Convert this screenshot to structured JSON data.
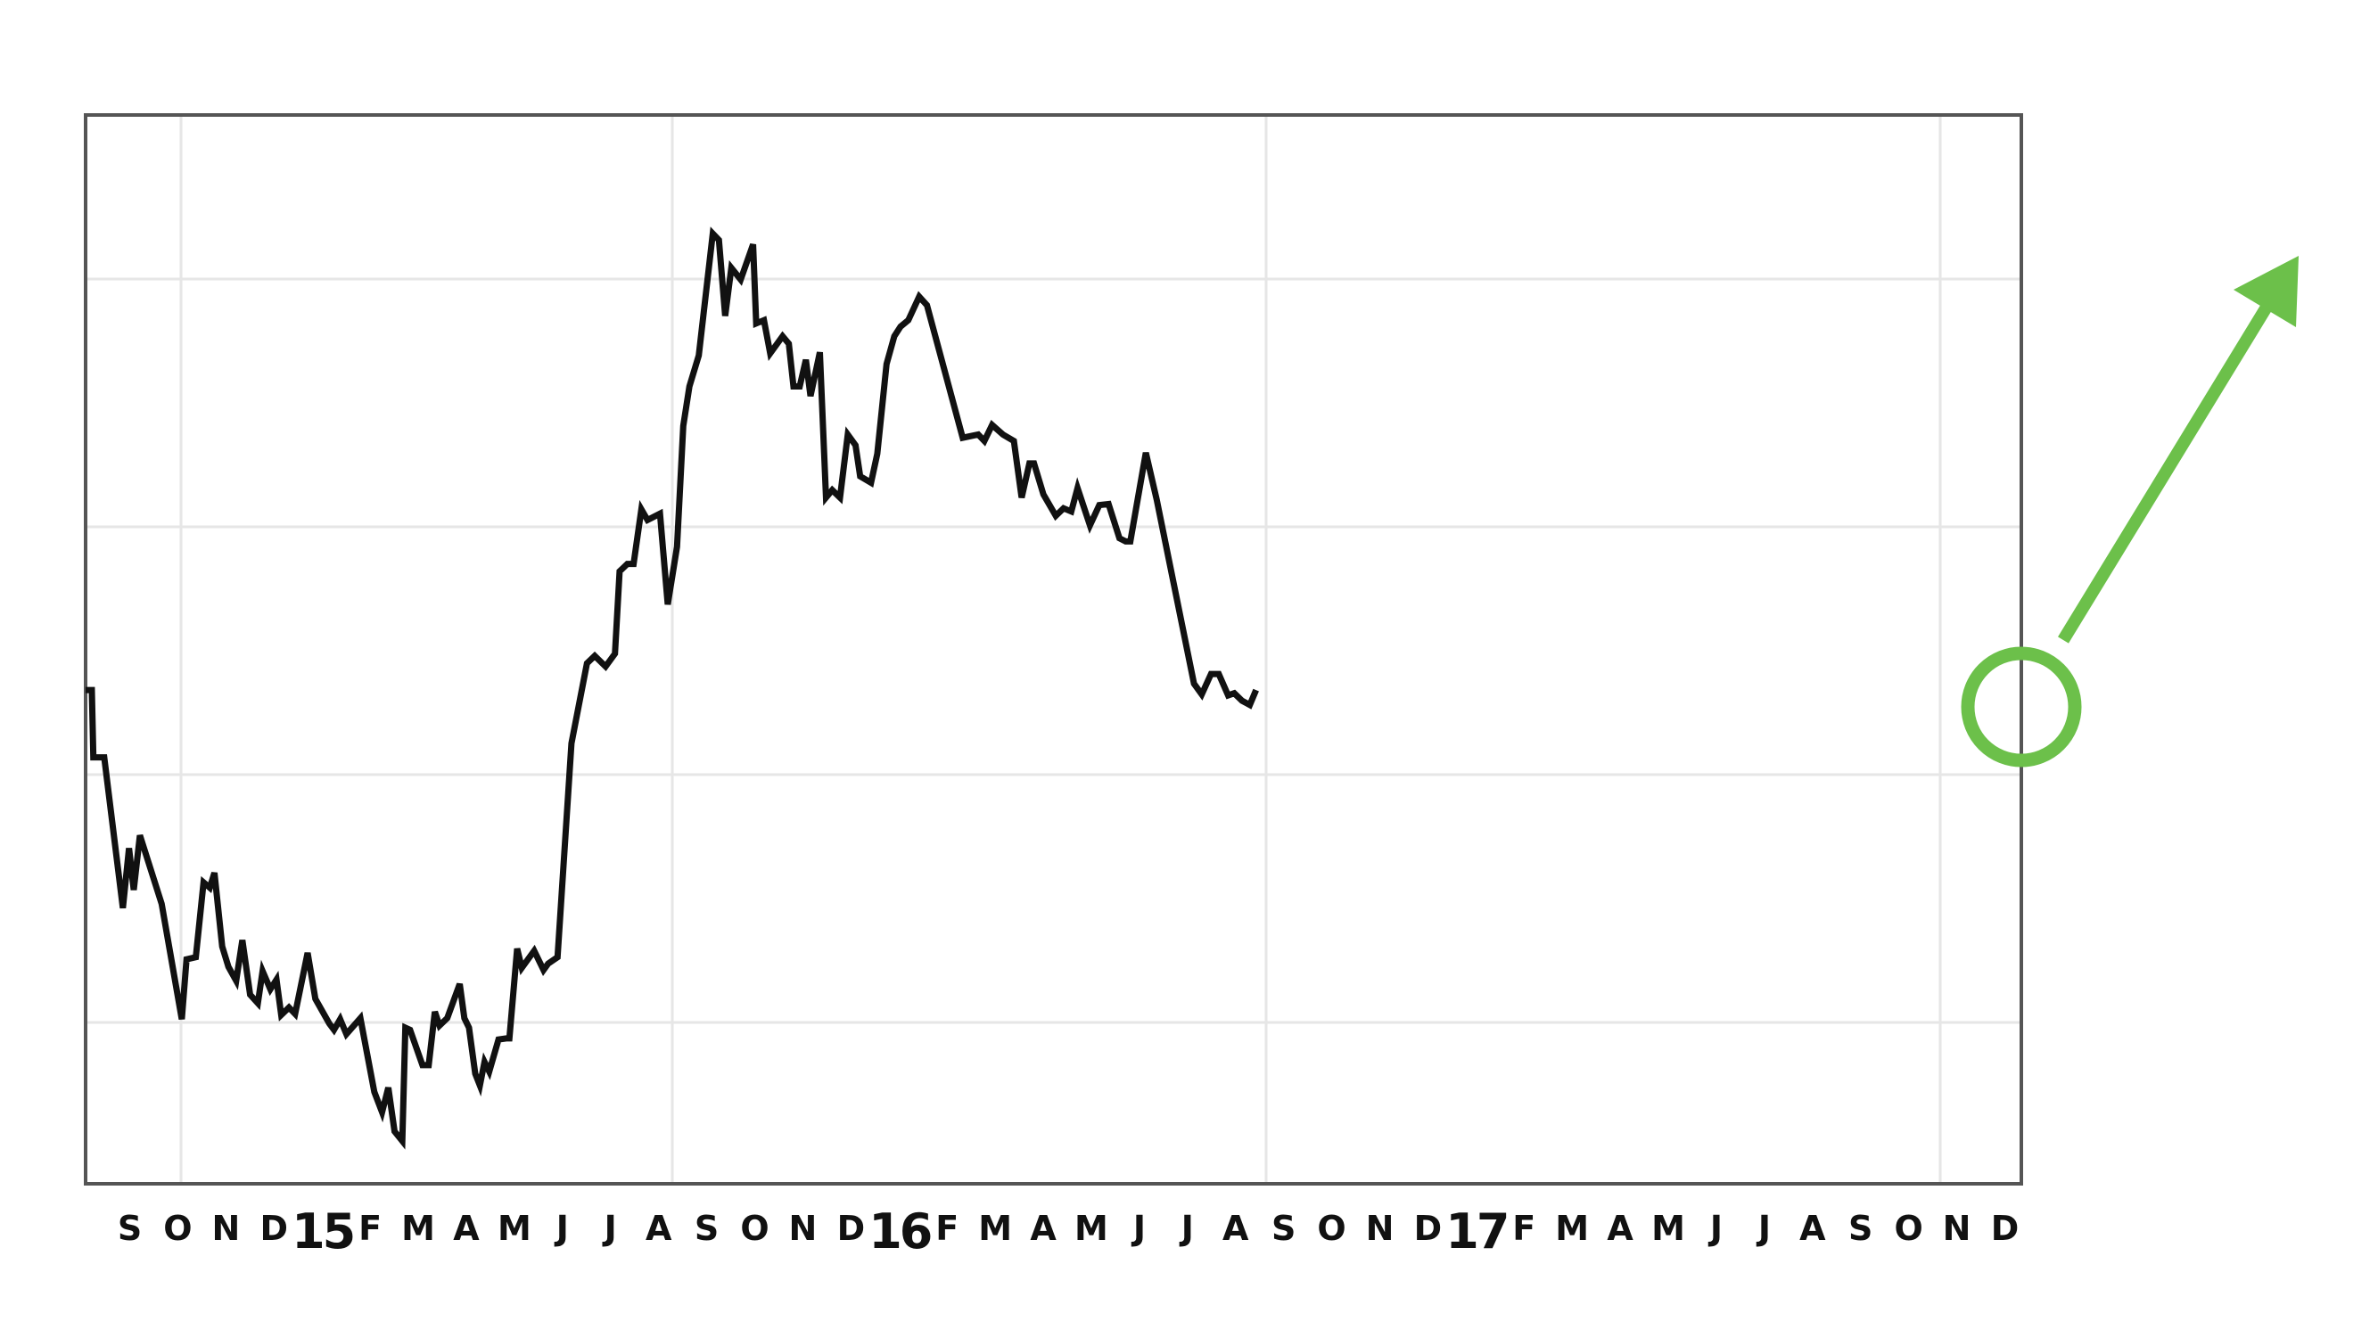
{
  "colors": {
    "background": "#ffffff",
    "line": "#111111",
    "frame": "#555555",
    "grid": "#e6e6e6",
    "accent": "#6cc04a"
  },
  "chart_data": {
    "type": "line",
    "title": "",
    "xlabel": "",
    "ylabel": "",
    "grid": true,
    "x_range": [
      "2014-08",
      "2017-12"
    ],
    "y_range": [
      0,
      100
    ],
    "y_ticks_labeled": false,
    "x_tick_labels": [
      {
        "label": "S",
        "year": false
      },
      {
        "label": "O",
        "year": false
      },
      {
        "label": "N",
        "year": false
      },
      {
        "label": "D",
        "year": false
      },
      {
        "label": "15",
        "year": true
      },
      {
        "label": "F",
        "year": false
      },
      {
        "label": "M",
        "year": false
      },
      {
        "label": "A",
        "year": false
      },
      {
        "label": "M",
        "year": false
      },
      {
        "label": "J",
        "year": false
      },
      {
        "label": "J",
        "year": false
      },
      {
        "label": "A",
        "year": false
      },
      {
        "label": "S",
        "year": false
      },
      {
        "label": "O",
        "year": false
      },
      {
        "label": "N",
        "year": false
      },
      {
        "label": "D",
        "year": false
      },
      {
        "label": "16",
        "year": true
      },
      {
        "label": "F",
        "year": false
      },
      {
        "label": "M",
        "year": false
      },
      {
        "label": "A",
        "year": false
      },
      {
        "label": "M",
        "year": false
      },
      {
        "label": "J",
        "year": false
      },
      {
        "label": "J",
        "year": false
      },
      {
        "label": "A",
        "year": false
      },
      {
        "label": "S",
        "year": false
      },
      {
        "label": "O",
        "year": false
      },
      {
        "label": "N",
        "year": false
      },
      {
        "label": "D",
        "year": false
      },
      {
        "label": "17",
        "year": true
      },
      {
        "label": "F",
        "year": false
      },
      {
        "label": "M",
        "year": false
      },
      {
        "label": "A",
        "year": false
      },
      {
        "label": "M",
        "year": false
      },
      {
        "label": "J",
        "year": false
      },
      {
        "label": "J",
        "year": false
      },
      {
        "label": "A",
        "year": false
      },
      {
        "label": "S",
        "year": false
      },
      {
        "label": "O",
        "year": false
      },
      {
        "label": "N",
        "year": false
      },
      {
        "label": "D",
        "year": false
      }
    ],
    "series": [
      {
        "color": "#111111",
        "points": [
          [
            "2014-08-01",
            46.2
          ],
          [
            "2014-08-05",
            46.2
          ],
          [
            "2014-08-06",
            39.9
          ],
          [
            "2014-08-13",
            39.9
          ],
          [
            "2014-08-25",
            25.8
          ],
          [
            "2014-08-29",
            31.4
          ],
          [
            "2014-09-01",
            27.5
          ],
          [
            "2014-09-05",
            32.6
          ],
          [
            "2014-09-19",
            26.2
          ],
          [
            "2014-10-02",
            15.4
          ],
          [
            "2014-10-05",
            21.0
          ],
          [
            "2014-10-11",
            21.2
          ],
          [
            "2014-10-16",
            28.2
          ],
          [
            "2014-10-20",
            27.7
          ],
          [
            "2014-10-23",
            29.1
          ],
          [
            "2014-10-28",
            22.2
          ],
          [
            "2014-11-01",
            20.3
          ],
          [
            "2014-11-06",
            19.0
          ],
          [
            "2014-11-10",
            22.8
          ],
          [
            "2014-11-15",
            17.7
          ],
          [
            "2014-11-20",
            16.9
          ],
          [
            "2014-11-23",
            19.9
          ],
          [
            "2014-11-28",
            18.2
          ],
          [
            "2014-12-02",
            19.1
          ],
          [
            "2014-12-05",
            15.8
          ],
          [
            "2014-12-10",
            16.5
          ],
          [
            "2014-12-14",
            15.9
          ],
          [
            "2014-12-22",
            21.6
          ],
          [
            "2014-12-27",
            17.3
          ],
          [
            "2015-01-05",
            15.0
          ],
          [
            "2015-01-08",
            14.4
          ],
          [
            "2015-01-12",
            15.4
          ],
          [
            "2015-01-16",
            14.0
          ],
          [
            "2015-01-25",
            15.5
          ],
          [
            "2015-02-03",
            8.6
          ],
          [
            "2015-02-08",
            6.7
          ],
          [
            "2015-02-12",
            9.0
          ],
          [
            "2015-02-16",
            4.9
          ],
          [
            "2015-02-21",
            4.0
          ],
          [
            "2015-02-23",
            14.6
          ],
          [
            "2015-02-26",
            14.4
          ],
          [
            "2015-03-06",
            11.1
          ],
          [
            "2015-03-10",
            11.1
          ],
          [
            "2015-03-14",
            16.1
          ],
          [
            "2015-03-17",
            14.8
          ],
          [
            "2015-03-22",
            15.5
          ],
          [
            "2015-03-30",
            18.7
          ],
          [
            "2015-04-02",
            15.5
          ],
          [
            "2015-04-05",
            14.6
          ],
          [
            "2015-04-09",
            10.3
          ],
          [
            "2015-04-12",
            9.2
          ],
          [
            "2015-04-15",
            11.4
          ],
          [
            "2015-04-18",
            10.5
          ],
          [
            "2015-04-24",
            13.5
          ],
          [
            "2015-04-29",
            13.6
          ],
          [
            "2015-05-01",
            13.6
          ],
          [
            "2015-05-06",
            22.0
          ],
          [
            "2015-05-09",
            20.2
          ],
          [
            "2015-05-17",
            21.8
          ],
          [
            "2015-05-23",
            20.0
          ],
          [
            "2015-05-26",
            20.6
          ],
          [
            "2015-06-01",
            21.2
          ],
          [
            "2015-06-10",
            41.2
          ],
          [
            "2015-06-20",
            48.7
          ],
          [
            "2015-06-25",
            49.4
          ],
          [
            "2015-07-02",
            48.4
          ],
          [
            "2015-07-08",
            49.6
          ],
          [
            "2015-07-11",
            57.3
          ],
          [
            "2015-07-16",
            58.0
          ],
          [
            "2015-07-20",
            58.0
          ],
          [
            "2015-07-25",
            63.1
          ],
          [
            "2015-07-29",
            62.1
          ],
          [
            "2015-08-06",
            62.7
          ],
          [
            "2015-08-11",
            54.2
          ],
          [
            "2015-08-17",
            59.6
          ],
          [
            "2015-08-21",
            70.9
          ],
          [
            "2015-08-25",
            74.6
          ],
          [
            "2015-08-31",
            77.5
          ],
          [
            "2015-09-09",
            88.9
          ],
          [
            "2015-09-13",
            88.3
          ],
          [
            "2015-09-17",
            81.2
          ],
          [
            "2015-09-21",
            85.7
          ],
          [
            "2015-09-27",
            84.6
          ],
          [
            "2015-10-05",
            87.9
          ],
          [
            "2015-10-07",
            80.5
          ],
          [
            "2015-10-12",
            80.8
          ],
          [
            "2015-10-16",
            77.7
          ],
          [
            "2015-10-24",
            79.3
          ],
          [
            "2015-10-28",
            78.6
          ],
          [
            "2015-10-31",
            74.6
          ],
          [
            "2015-11-04",
            74.6
          ],
          [
            "2015-11-08",
            77.1
          ],
          [
            "2015-11-11",
            73.7
          ],
          [
            "2015-11-17",
            77.8
          ],
          [
            "2015-11-21",
            64.2
          ],
          [
            "2015-11-25",
            64.9
          ],
          [
            "2015-11-30",
            64.2
          ],
          [
            "2015-12-05",
            70.1
          ],
          [
            "2015-12-10",
            69.1
          ],
          [
            "2015-12-13",
            66.2
          ],
          [
            "2015-12-20",
            65.6
          ],
          [
            "2015-12-24",
            68.3
          ],
          [
            "2015-12-30",
            76.7
          ],
          [
            "2016-01-04",
            79.3
          ],
          [
            "2016-01-08",
            80.2
          ],
          [
            "2016-01-13",
            80.8
          ],
          [
            "2016-01-20",
            83.0
          ],
          [
            "2016-01-25",
            82.2
          ],
          [
            "2016-02-17",
            69.8
          ],
          [
            "2016-02-27",
            70.1
          ],
          [
            "2016-03-02",
            69.5
          ],
          [
            "2016-03-07",
            71.0
          ],
          [
            "2016-03-14",
            70.1
          ],
          [
            "2016-03-21",
            69.5
          ],
          [
            "2016-03-26",
            64.2
          ],
          [
            "2016-03-31",
            67.4
          ],
          [
            "2016-04-03",
            67.4
          ],
          [
            "2016-04-09",
            64.5
          ],
          [
            "2016-04-17",
            62.5
          ],
          [
            "2016-04-22",
            63.2
          ],
          [
            "2016-04-27",
            62.9
          ],
          [
            "2016-05-01",
            65.1
          ],
          [
            "2016-05-09",
            61.6
          ],
          [
            "2016-05-15",
            63.5
          ],
          [
            "2016-05-21",
            63.6
          ],
          [
            "2016-05-28",
            60.4
          ],
          [
            "2016-06-01",
            60.1
          ],
          [
            "2016-06-04",
            60.1
          ],
          [
            "2016-06-14",
            68.4
          ],
          [
            "2016-06-21",
            64.0
          ],
          [
            "2016-07-15",
            46.8
          ],
          [
            "2016-07-20",
            45.8
          ],
          [
            "2016-07-26",
            47.7
          ],
          [
            "2016-07-31",
            47.7
          ],
          [
            "2016-08-06",
            45.7
          ],
          [
            "2016-08-10",
            45.9
          ],
          [
            "2016-08-15",
            45.2
          ],
          [
            "2016-08-20",
            44.8
          ],
          [
            "2016-08-24",
            46.2
          ]
        ]
      }
    ]
  }
}
